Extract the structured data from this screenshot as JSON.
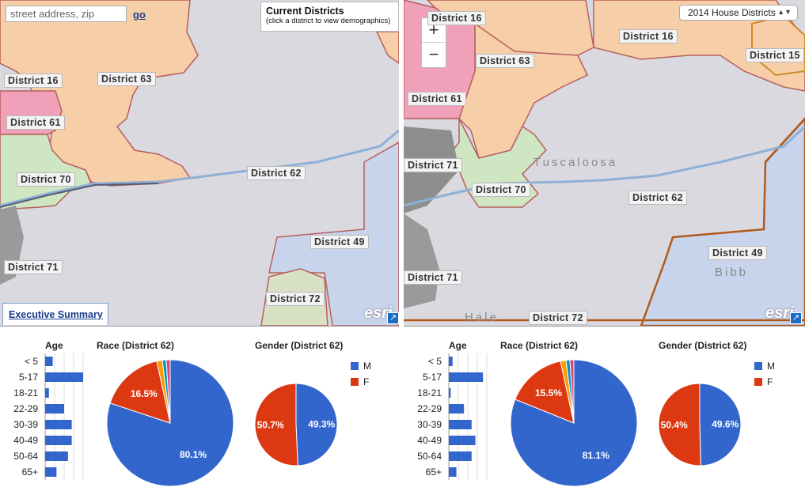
{
  "left": {
    "search_placeholder": "street address, zip",
    "go_label": "go",
    "current_title": "Current Districts",
    "current_sub": "(click a district to view demographics)",
    "exec_label": "Executive Summary",
    "esri_label": "esri",
    "districts": [
      "District 16",
      "District 63",
      "District 61",
      "District 70",
      "District 62",
      "District 49",
      "District 71",
      "District 72"
    ]
  },
  "right": {
    "select_value": "2014 House Districts",
    "zoom_in": "+",
    "zoom_out": "−",
    "esri_label": "esri",
    "places": [
      "Tuscaloosa",
      "Bibb",
      "Hale"
    ],
    "districts": [
      "District 16",
      "District 16",
      "District 15",
      "District 63",
      "District 61",
      "District 71",
      "District 70",
      "District 62",
      "District 49",
      "District 71",
      "District 72"
    ]
  },
  "colors": {
    "male": "#3366cc",
    "female": "#dc3912",
    "district62": "#d9d9df",
    "district63": "#f6cfa8",
    "district61": "#f0a0b8",
    "district70": "#cfe6c2",
    "district49": "#c8d3ec",
    "district72": "#d9e1c4"
  },
  "charts": [
    {
      "age_title": "Age",
      "race_title": "Race (District 62)",
      "gender_title": "Gender (District 62)",
      "legend": [
        "M",
        "F"
      ],
      "chart_data": [
        {
          "type": "bar",
          "title": "Age",
          "categories": [
            "< 5",
            "5-17",
            "18-21",
            "22-29",
            "30-39",
            "40-49",
            "50-64",
            "65+"
          ],
          "values": [
            2,
            10,
            1,
            5,
            7,
            7,
            6,
            3
          ]
        },
        {
          "type": "pie",
          "title": "Race (District 62)",
          "labels": [
            "",
            "",
            "",
            "",
            ""
          ],
          "values": [
            80.1,
            16.5,
            1.4,
            1.0,
            1.0
          ],
          "value_labels": [
            "80.1%",
            "16.5%",
            "",
            "",
            ""
          ],
          "colors": [
            "#3366cc",
            "#dc3912",
            "#ff9900",
            "#0099c6",
            "#dd4477"
          ]
        },
        {
          "type": "pie",
          "title": "Gender (District 62)",
          "labels": [
            "M",
            "F"
          ],
          "values": [
            49.3,
            50.7
          ],
          "value_labels": [
            "49.3%",
            "50.7%"
          ],
          "colors": [
            "#3366cc",
            "#dc3912"
          ]
        }
      ]
    },
    {
      "age_title": "Age",
      "race_title": "Race (District 62)",
      "gender_title": "Gender (District 62)",
      "legend": [
        "M",
        "F"
      ],
      "chart_data": [
        {
          "type": "bar",
          "title": "Age",
          "categories": [
            "< 5",
            "5-17",
            "18-21",
            "22-29",
            "30-39",
            "40-49",
            "50-64",
            "65+"
          ],
          "values": [
            1,
            9,
            0.5,
            4,
            6,
            7,
            6,
            2
          ]
        },
        {
          "type": "pie",
          "title": "Race (District 62)",
          "labels": [
            "",
            "",
            "",
            "",
            ""
          ],
          "values": [
            81.1,
            15.5,
            1.4,
            1.0,
            1.0
          ],
          "value_labels": [
            "81.1%",
            "15.5%",
            "",
            "",
            ""
          ],
          "colors": [
            "#3366cc",
            "#dc3912",
            "#ff9900",
            "#0099c6",
            "#dd4477"
          ]
        },
        {
          "type": "pie",
          "title": "Gender (District 62)",
          "labels": [
            "M",
            "F"
          ],
          "values": [
            49.6,
            50.4
          ],
          "value_labels": [
            "49.6%",
            "50.4%"
          ],
          "colors": [
            "#3366cc",
            "#dc3912"
          ]
        }
      ]
    }
  ]
}
